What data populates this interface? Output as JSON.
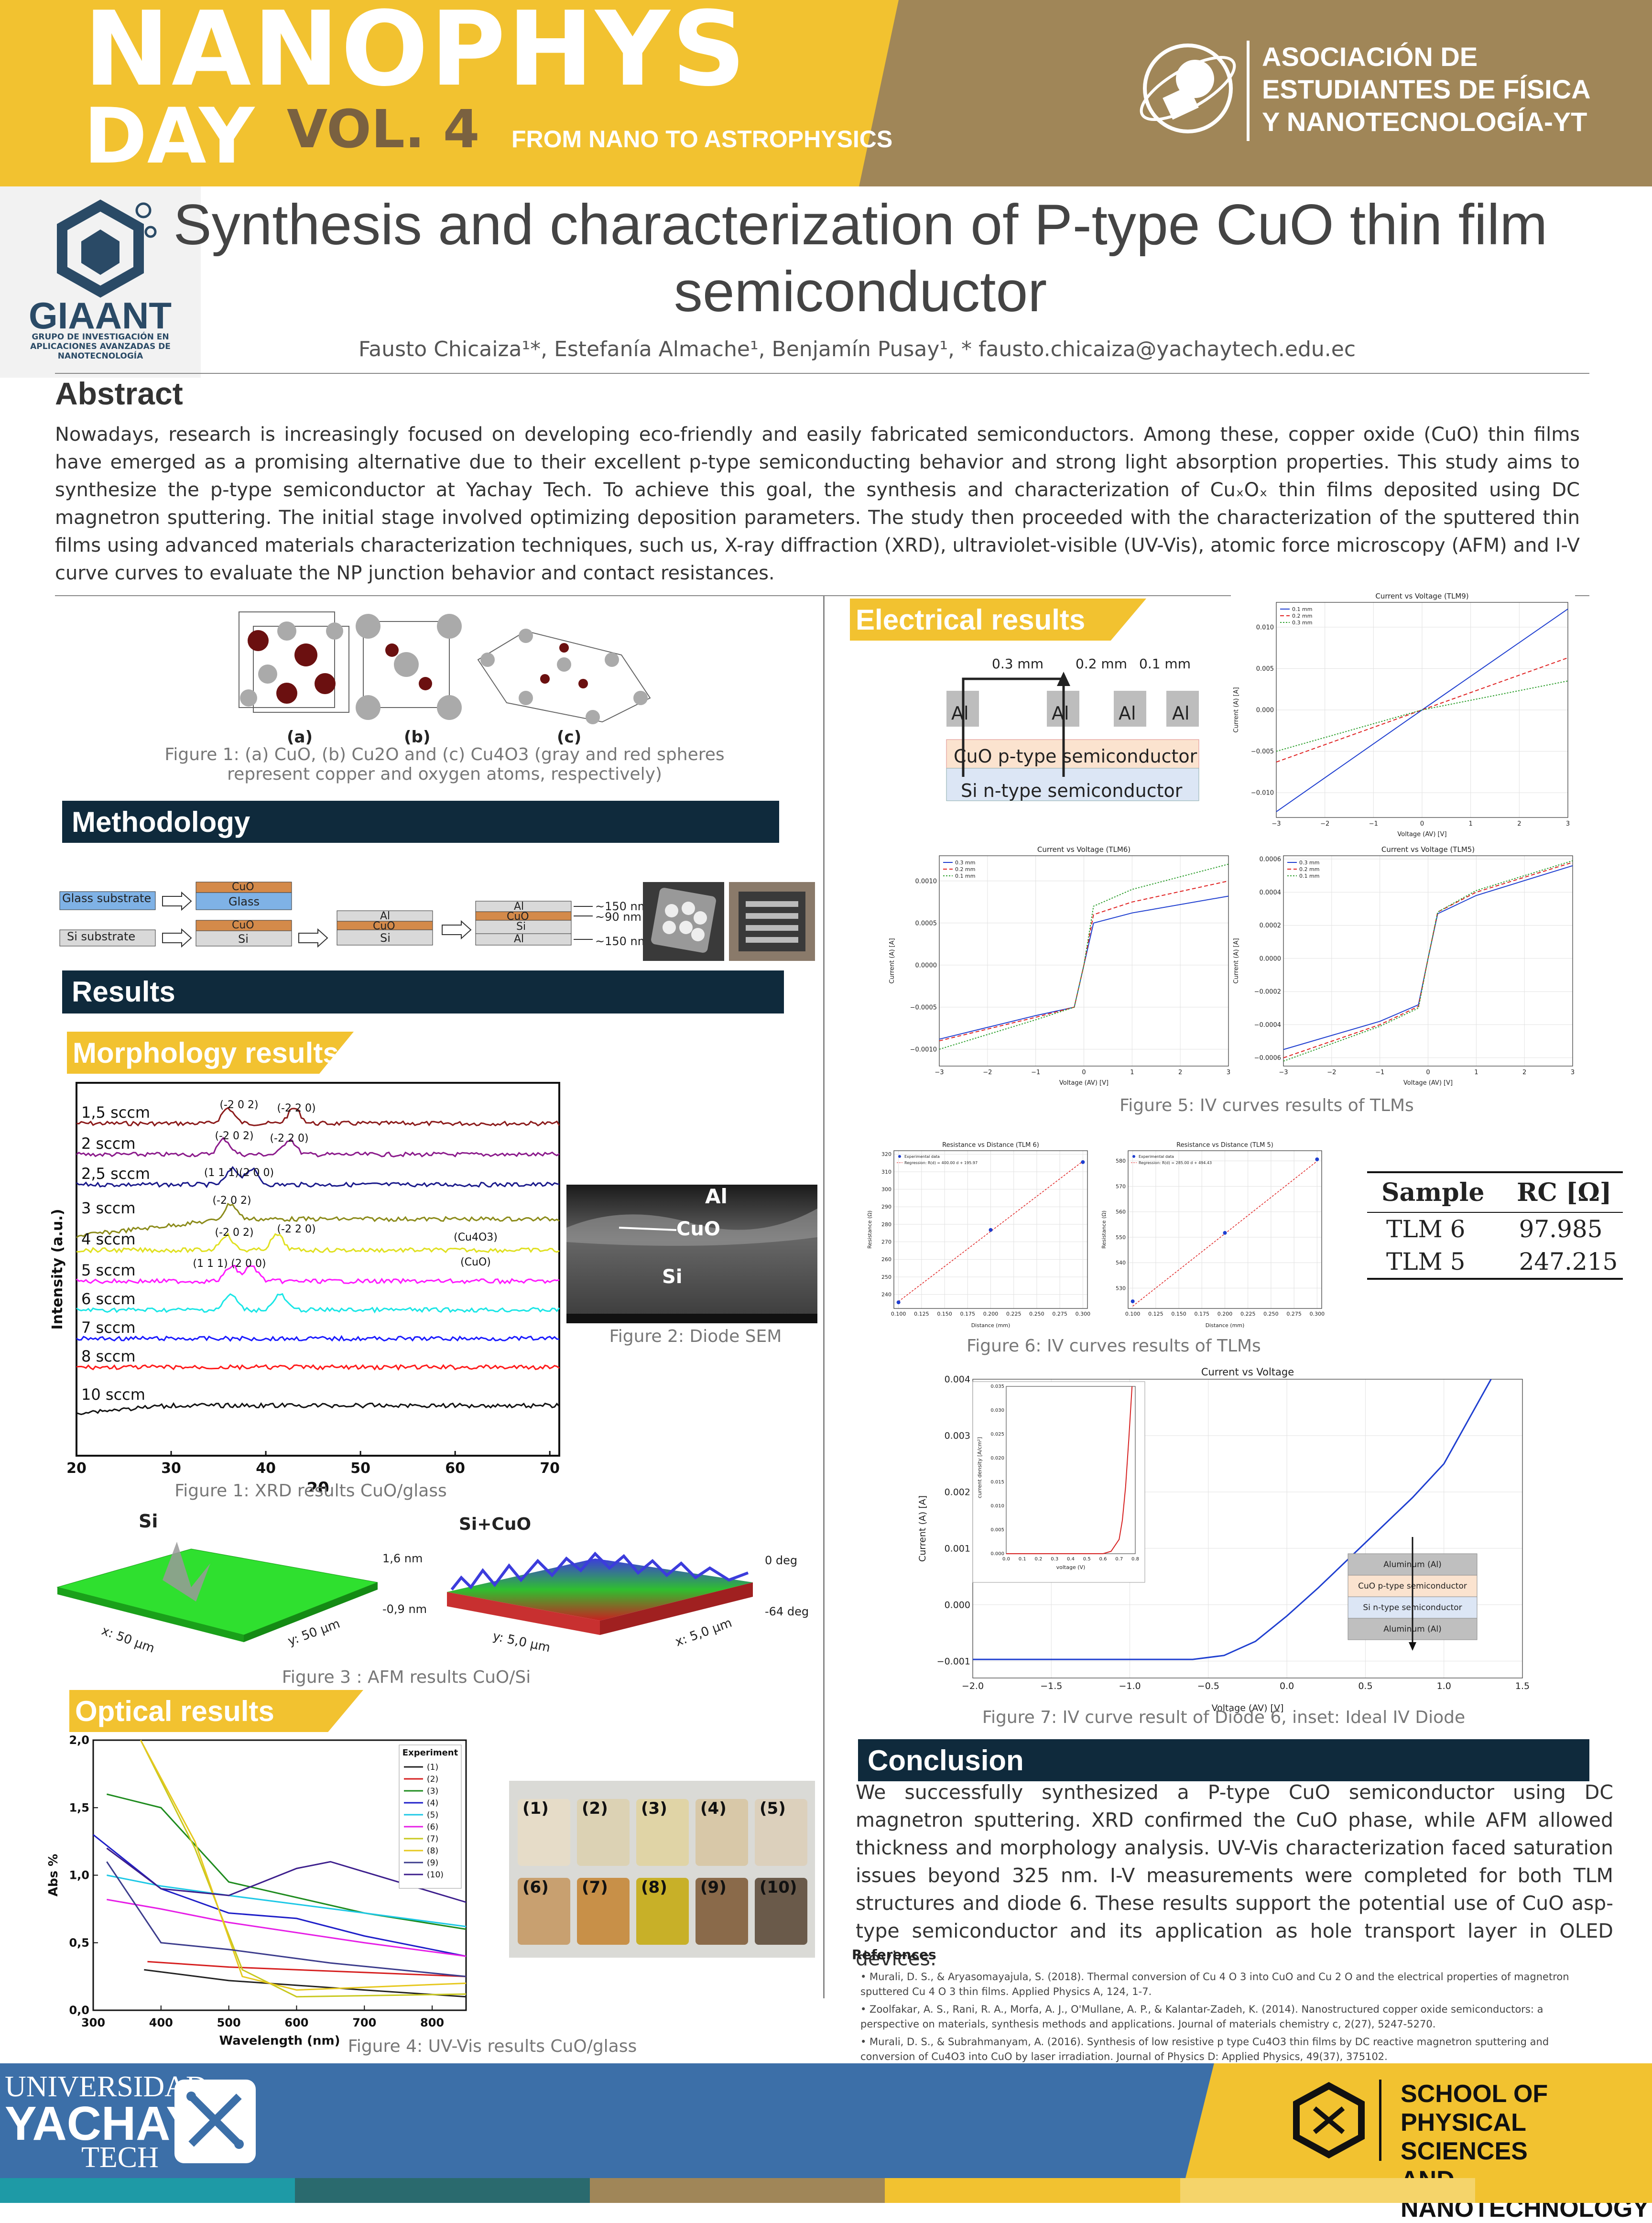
{
  "header": {
    "brand_line1": "NANOPHYS",
    "brand_line2": "DAY",
    "volume": "VOL. 4",
    "tagline": "FROM NANO TO ASTROPHYSICS",
    "association": [
      "ASOCIACIÓN DE",
      "ESTUDIANTES DE FÍSICA",
      "Y NANOTECNOLOGÍA-YT"
    ],
    "colors": {
      "yellow": "#f2c230",
      "brown": "#a08658",
      "navy": "#0f2a3c",
      "blue": "#3c6fa8"
    }
  },
  "group_logo": {
    "name": "GIAANT",
    "subtitle": [
      "GRUPO DE INVESTIGACIÓN EN",
      "APLICACIONES AVANZADAS DE",
      "NANOTECNOLOGÍA"
    ]
  },
  "title": {
    "line1": "Synthesis and characterization of P-type CuO thin film",
    "line2": "semiconductor"
  },
  "authors": "Fausto Chicaiza¹*, Estefanía Almache¹, Benjamín Pusay¹,  * fausto.chicaiza@yachaytech.edu.ec",
  "abstract": {
    "heading": "Abstract",
    "text": "Nowadays, research is increasingly focused on developing eco-friendly and easily fabricated semiconductors. Among these, copper oxide (CuO) thin films have emerged as a promising alternative due to their excellent p-type semiconducting behavior and strong light absorption properties.  This study aims to synthesize the p-type semiconductor at Yachay Tech. To achieve this goal, the synthesis and characterization of CuₓOₓ thin films deposited using DC magnetron sputtering.  The initial stage involved optimizing deposition parameters. The study then proceeded with the characterization of the sputtered thin films using advanced materials characterization techniques, such us, X-ray diffraction (XRD), ultraviolet-visible (UV-Vis), atomic force microscopy (AFM) and I-V curve curves to evaluate the NP junction behavior and contact resistances."
  },
  "figure1": {
    "labels": [
      "(a)",
      "(b)",
      "(c)"
    ],
    "caption": "Figure 1:  (a) CuO, (b) Cu2O and (c) Cu4O3 (gray and red spheres represent copper and oxygen atoms, respectively)"
  },
  "methodology": {
    "heading": "Methodology",
    "glass_substrate": "Glass substrate",
    "si_substrate": "Si substrate",
    "cuo": "CuO",
    "glass": "Glass",
    "si": "Si",
    "al": "Al",
    "thickness": [
      "~150 nm",
      "~90 nm",
      "~150 nm"
    ]
  },
  "results_heading": "Results",
  "morphology": {
    "heading": "Morphology results",
    "xrd_caption": "Figure 1: XRD results CuO/glass",
    "sem_caption": "Figure 2: Diode SEM",
    "sem_labels": [
      "Al",
      "CuO",
      "Si"
    ],
    "afm_caption": "Figure 3 : AFM results CuO/Si",
    "afm_si": {
      "title": "Si",
      "x": "x: 50 µm",
      "y": "y: 50 µm",
      "top": "1,6 nm",
      "bottom": "-0,9 nm"
    },
    "afm_cuo": {
      "title": "Si+CuO",
      "x": "x: 5,0 µm",
      "y": "y: 5,0 µm",
      "top": "0 deg",
      "bottom": "-64 deg"
    }
  },
  "optical": {
    "heading": "Optical results",
    "caption": "Figure 4:  UV-Vis results CuO/glass",
    "sample_labels": [
      "(1)",
      "(2)",
      "(3)",
      "(4)",
      "(5)",
      "(6)",
      "(7)",
      "(8)",
      "(9)",
      "(10)"
    ]
  },
  "electrical": {
    "heading": "Electrical results",
    "tlm_spacings": [
      "0.3 mm",
      "0.2 mm",
      "0.1 mm"
    ],
    "al": "Al",
    "cuo_layer": "CuO p-type semiconductor",
    "si_layer": "Si n-type semiconductor",
    "fig5_caption": "Figure 5: IV curves results of TLMs",
    "fig6_caption": "Figure 6: IV curves results of TLMs",
    "fig7_caption": "Figure 7: IV curve result of Diode 6, inset: Ideal IV Diode",
    "table": {
      "headers": [
        "Sample",
        "RC [Ω]"
      ],
      "rows": [
        [
          "TLM 6",
          "97.985"
        ],
        [
          "TLM 5",
          "247.215"
        ]
      ]
    },
    "diode_inset_layers": [
      "Aluminum (Al)",
      "CuO p-type semiconductor",
      "Si n-type semiconductor",
      "Aluminum (Al)"
    ]
  },
  "conclusion": {
    "heading": "Conclusion",
    "text": "We successfully synthesized a P-type CuO semiconductor using DC magnetron sputtering. XRD confirmed the CuO phase, while AFM allowed thickness and morphology analysis. UV-Vis characterization faced saturation issues beyond 325 nm. I-V measurements were completed for both TLM structures and diode 6. These results support the potential use of CuO asp-type semiconductor and its application as hole transport layer in OLED devices."
  },
  "references": {
    "heading": "References",
    "items": [
      "Murali, D. S., & Aryasomayajula, S. (2018). Thermal conversion of Cu 4 O 3 into CuO and Cu 2 O and the electrical properties of magnetron sputtered Cu 4 O 3 thin films. Applied Physics A, 124, 1-7.",
      "Zoolfakar, A. S., Rani, R. A., Morfa, A. J., O'Mullane, A. P., & Kalantar-Zadeh, K. (2014). Nanostructured copper oxide semiconductors: a perspective on materials, synthesis methods and applications. Journal of materials chemistry c, 2(27), 5247-5270.",
      "Murali, D. S., & Subrahmanyam, A. (2016). Synthesis of low resistive p type Cu4O3 thin films by DC reactive magnetron sputtering and conversion of Cu4O3 into CuO by laser irradiation. Journal of Physics D: Applied Physics, 49(37), 375102."
    ]
  },
  "footer": {
    "university": [
      "UNIVERSIDAD",
      "YACHAY",
      "TECH"
    ],
    "school": [
      "SCHOOL OF",
      "PHYSICAL SCIENCES",
      "AND NANOTECHNOLOGY"
    ]
  },
  "chart_data": [
    {
      "id": "xrd",
      "type": "line",
      "title": "",
      "xlabel": "2θ",
      "ylabel": "Intensity (a.u.)",
      "xlim": [
        20,
        71
      ],
      "xticks": [
        "20",
        "30",
        "40",
        "50",
        "60",
        "70"
      ],
      "series": [
        {
          "name": "1,5 sccm",
          "color": "#8b1a1a",
          "peaks": [
            36,
            43
          ]
        },
        {
          "name": "2 sccm",
          "color": "#8b1a8b",
          "peaks": [
            35.6,
            42.5
          ]
        },
        {
          "name": "2,5 sccm",
          "color": "#1a1a8b",
          "peaks": [
            36.5,
            38.5
          ]
        },
        {
          "name": "3 sccm",
          "color": "#8b8b1a",
          "peaks": [
            36.3
          ]
        },
        {
          "name": "4 sccm",
          "color": "#e0e020",
          "peaks": [
            35.8,
            41.2
          ]
        },
        {
          "name": "5 sccm",
          "color": "#ff1aff",
          "peaks": [
            36.4,
            38.5
          ]
        },
        {
          "name": "6 sccm",
          "color": "#1ae6e6",
          "peaks": [
            36.3,
            41.5
          ]
        },
        {
          "name": "7 sccm",
          "color": "#1a1aff",
          "peaks": []
        },
        {
          "name": "8 sccm",
          "color": "#ff1a1a",
          "peaks": []
        },
        {
          "name": "10 sccm",
          "color": "#111111",
          "peaks": []
        }
      ],
      "annotations": [
        "(-2 0 2)",
        "(-2 2 0)",
        "(-2 0 2)",
        "(-2 2 0)",
        "(1 1 1)(2 0 0)",
        "(-2 0 2)",
        "(-2 0 2)",
        "(-2 2 0)",
        "(Cu4O3)",
        "(1 1 1)",
        "(2 0 0)",
        "(CuO)"
      ]
    },
    {
      "id": "uvvis",
      "type": "line",
      "xlabel": "Wavelength (nm)",
      "ylabel": "Abs %",
      "xlim": [
        300,
        850
      ],
      "ylim": [
        0,
        2
      ],
      "xticks": [
        "300",
        "400",
        "500",
        "600",
        "700",
        "800"
      ],
      "yticks": [
        "0,0",
        "0,5",
        "1,0",
        "1,5",
        "2,0"
      ],
      "legend_title": "Experiment",
      "legend_position": "top-right",
      "series": [
        {
          "name": "(1)",
          "color": "#222222",
          "x": [
            375,
            500,
            700,
            850
          ],
          "y": [
            0.3,
            0.22,
            0.15,
            0.1
          ]
        },
        {
          "name": "(2)",
          "color": "#d62020",
          "x": [
            380,
            500,
            700,
            850
          ],
          "y": [
            0.36,
            0.32,
            0.28,
            0.25
          ]
        },
        {
          "name": "(3)",
          "color": "#1e8b1e",
          "x": [
            320,
            400,
            500,
            700,
            850
          ],
          "y": [
            1.6,
            1.5,
            0.95,
            0.72,
            0.6
          ]
        },
        {
          "name": "(4)",
          "color": "#1e1ec8",
          "x": [
            300,
            400,
            500,
            600,
            700,
            850
          ],
          "y": [
            1.3,
            0.9,
            0.72,
            0.68,
            0.55,
            0.4
          ]
        },
        {
          "name": "(5)",
          "color": "#1ec8e6",
          "x": [
            320,
            400,
            500,
            700,
            850
          ],
          "y": [
            1.0,
            0.92,
            0.85,
            0.72,
            0.62
          ]
        },
        {
          "name": "(6)",
          "color": "#e61ee6",
          "x": [
            320,
            400,
            500,
            700,
            850
          ],
          "y": [
            0.82,
            0.75,
            0.65,
            0.5,
            0.4
          ]
        },
        {
          "name": "(7)",
          "color": "#c8c81e",
          "x": [
            370,
            450,
            520,
            600,
            850
          ],
          "y": [
            2.0,
            1.2,
            0.3,
            0.1,
            0.12
          ]
        },
        {
          "name": "(8)",
          "color": "#e6c81e",
          "x": [
            370,
            450,
            520,
            600,
            850
          ],
          "y": [
            2.0,
            1.25,
            0.25,
            0.15,
            0.2
          ]
        },
        {
          "name": "(9)",
          "color": "#3c3c8c",
          "x": [
            320,
            400,
            500,
            650,
            850
          ],
          "y": [
            1.1,
            0.5,
            0.45,
            0.35,
            0.25
          ]
        },
        {
          "name": "(10)",
          "color": "#3c1e8c",
          "x": [
            320,
            400,
            500,
            600,
            650,
            850
          ],
          "y": [
            1.2,
            0.9,
            0.85,
            1.05,
            1.1,
            0.8
          ]
        }
      ]
    },
    {
      "id": "tlm9",
      "type": "line",
      "title": "Current vs Voltage (TLM9)",
      "xlabel": "Voltage (AV) [V]",
      "ylabel": "Current (A) [A]",
      "xlim": [
        -3,
        3
      ],
      "ylim": [
        -0.013,
        0.013
      ],
      "xticks": [
        "−3",
        "−2",
        "−1",
        "0",
        "1",
        "2",
        "3"
      ],
      "yticks": [
        "−0.010",
        "−0.005",
        "0.000",
        "0.005",
        "0.010"
      ],
      "series": [
        {
          "name": "0.1 mm",
          "color": "#1f3fd0",
          "x": [
            -3,
            0,
            3
          ],
          "y": [
            -0.0123,
            0,
            0.0122
          ]
        },
        {
          "name": "0.2 mm",
          "color": "#e02020",
          "x": [
            -3,
            0,
            3
          ],
          "y": [
            -0.0063,
            0,
            0.0063
          ]
        },
        {
          "name": "0.3 mm",
          "color": "#30a030",
          "x": [
            -3,
            0,
            3
          ],
          "y": [
            -0.005,
            0,
            0.0035
          ]
        }
      ]
    },
    {
      "id": "tlm6",
      "type": "line",
      "title": "Current vs Voltage (TLM6)",
      "xlabel": "Voltage (AV) [V]",
      "ylabel": "Current (A) [A]",
      "xlim": [
        -3,
        3
      ],
      "ylim": [
        -0.0012,
        0.0013
      ],
      "xticks": [
        "−3",
        "−2",
        "−1",
        "0",
        "1",
        "2",
        "3"
      ],
      "yticks": [
        "−0.0010",
        "−0.0005",
        "0.0000",
        "0.0005",
        "0.0010"
      ],
      "series": [
        {
          "name": "0.3 mm",
          "color": "#1f3fd0",
          "x": [
            -3,
            -1,
            -0.2,
            0,
            0.2,
            1,
            3
          ],
          "y": [
            -0.00088,
            -0.0006,
            -0.0005,
            0,
            0.0005,
            0.00062,
            0.00082
          ]
        },
        {
          "name": "0.2 mm",
          "color": "#e02020",
          "x": [
            -3,
            -1,
            -0.2,
            0,
            0.2,
            1,
            3
          ],
          "y": [
            -0.0009,
            -0.00062,
            -0.0005,
            0,
            0.0006,
            0.00075,
            0.001
          ]
        },
        {
          "name": "0.1 mm",
          "color": "#30a030",
          "x": [
            -3,
            -1,
            -0.2,
            0,
            0.2,
            1,
            3
          ],
          "y": [
            -0.001,
            -0.00065,
            -0.0005,
            0,
            0.0007,
            0.0009,
            0.0012
          ]
        }
      ]
    },
    {
      "id": "tlm5",
      "type": "line",
      "title": "Current vs Voltage (TLM5)",
      "xlabel": "Voltage (AV) [V]",
      "ylabel": "Current (A) [A]",
      "xlim": [
        -3,
        3
      ],
      "ylim": [
        -0.00065,
        0.00062
      ],
      "xticks": [
        "−3",
        "−2",
        "−1",
        "0",
        "1",
        "2",
        "3"
      ],
      "yticks": [
        "−0.0006",
        "−0.0004",
        "−0.0002",
        "0.0000",
        "0.0002",
        "0.0004",
        "0.0006"
      ],
      "series": [
        {
          "name": "0.3 mm",
          "color": "#1f3fd0",
          "x": [
            -3,
            -1,
            -0.2,
            0,
            0.2,
            1,
            3
          ],
          "y": [
            -0.00055,
            -0.00038,
            -0.00028,
            0,
            0.00027,
            0.00038,
            0.00056
          ]
        },
        {
          "name": "0.2 mm",
          "color": "#e02020",
          "x": [
            -3,
            -1,
            -0.2,
            0,
            0.2,
            1,
            3
          ],
          "y": [
            -0.0006,
            -0.0004,
            -0.00029,
            0,
            0.00028,
            0.0004,
            0.00058
          ]
        },
        {
          "name": "0.1 mm",
          "color": "#30a030",
          "x": [
            -3,
            -1,
            -0.2,
            0,
            0.2,
            1,
            3
          ],
          "y": [
            -0.00062,
            -0.00041,
            -0.0003,
            0,
            0.00028,
            0.00041,
            0.00059
          ]
        }
      ]
    },
    {
      "id": "rd6",
      "type": "scatter",
      "title": "Resistance vs Distance (TLM 6)",
      "xlabel": "Distance (mm)",
      "ylabel": "Resistance (Ω)",
      "xlim": [
        0.095,
        0.305
      ],
      "ylim": [
        232,
        322
      ],
      "xticks": [
        "0.100",
        "0.125",
        "0.150",
        "0.175",
        "0.200",
        "0.225",
        "0.250",
        "0.275",
        "0.300"
      ],
      "yticks": [
        "240",
        "250",
        "260",
        "270",
        "280",
        "290",
        "300",
        "310",
        "320"
      ],
      "legend": [
        "Experimental data",
        "Regression: R(d) = 400.00 d + 195.97"
      ],
      "points": {
        "x": [
          0.1,
          0.2,
          0.3
        ],
        "y": [
          235.5,
          276.8,
          315.5
        ]
      },
      "fit": {
        "x": [
          0.1,
          0.3
        ],
        "y": [
          235.97,
          315.97
        ]
      }
    },
    {
      "id": "rd5",
      "type": "scatter",
      "title": "Resistance vs Distance (TLM 5)",
      "xlabel": "Distance (mm)",
      "ylabel": "Resistance (Ω)",
      "xlim": [
        0.095,
        0.305
      ],
      "ylim": [
        522,
        584
      ],
      "xticks": [
        "0.100",
        "0.125",
        "0.150",
        "0.175",
        "0.200",
        "0.225",
        "0.250",
        "0.275",
        "0.300"
      ],
      "yticks": [
        "530",
        "540",
        "550",
        "560",
        "570",
        "580"
      ],
      "legend": [
        "Experimental data",
        "Regression: R(d) = 285.00 d + 494.43"
      ],
      "points": {
        "x": [
          0.1,
          0.2,
          0.3
        ],
        "y": [
          524.8,
          551.7,
          580.6
        ]
      },
      "fit": {
        "x": [
          0.1,
          0.3
        ],
        "y": [
          522.9,
          579.9
        ]
      }
    },
    {
      "id": "diode",
      "type": "line",
      "title": "Current vs Voltage",
      "xlabel": "Voltage (AV) [V]",
      "ylabel": "Current (A) [A]",
      "xlim": [
        -2.0,
        1.5
      ],
      "ylim": [
        -0.0013,
        0.004
      ],
      "xticks": [
        "−2.0",
        "−1.5",
        "−1.0",
        "−0.5",
        "0.0",
        "0.5",
        "1.0",
        "1.5"
      ],
      "yticks": [
        "−0.001",
        "0.000",
        "0.001",
        "0.002",
        "0.003",
        "0.004"
      ],
      "series": [
        {
          "name": "Diode 6",
          "color": "#1f3fd0",
          "x": [
            -2.0,
            -0.6,
            -0.4,
            -0.2,
            0.0,
            0.2,
            0.5,
            0.8,
            1.0,
            1.3
          ],
          "y": [
            -0.00097,
            -0.00097,
            -0.0009,
            -0.00065,
            -0.0002,
            0.0003,
            0.0011,
            0.0019,
            0.0025,
            0.004
          ]
        }
      ],
      "inset": {
        "xlabel": "voltage (V)",
        "ylabel": "current density [A/cm²]",
        "xticks": [
          "0.0",
          "0.1",
          "0.2",
          "0.3",
          "0.4",
          "0.5",
          "0.6",
          "0.7",
          "0.8"
        ],
        "yticks": [
          "0.000",
          "0.005",
          "0.010",
          "0.015",
          "0.020",
          "0.025",
          "0.030",
          "0.035"
        ],
        "x": [
          0.0,
          0.6,
          0.65,
          0.7,
          0.72,
          0.74,
          0.76,
          0.78
        ],
        "y": [
          0.0,
          0.0,
          0.0005,
          0.003,
          0.007,
          0.014,
          0.024,
          0.035
        ]
      }
    }
  ]
}
